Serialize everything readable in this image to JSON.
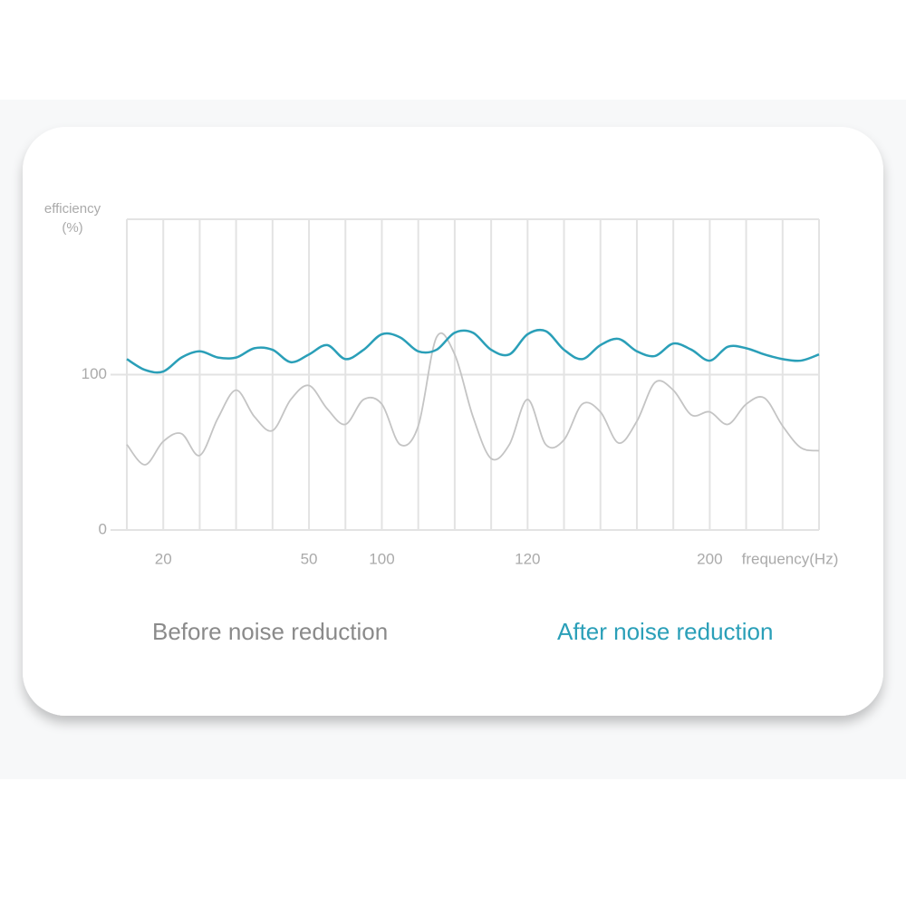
{
  "chart_data": {
    "type": "line",
    "y_label": [
      "efficiency",
      "(%)"
    ],
    "x_label": "frequency(Hz)",
    "categories": [
      null,
      null,
      "20",
      null,
      null,
      null,
      null,
      null,
      null,
      null,
      "50",
      null,
      null,
      null,
      "100",
      null,
      null,
      null,
      null,
      null,
      null,
      null,
      "120",
      null,
      null,
      null,
      null,
      null,
      null,
      null,
      null,
      null,
      "200",
      null,
      null,
      null,
      null,
      null,
      null
    ],
    "ylim": [
      0,
      200
    ],
    "yticks": [
      0,
      100
    ],
    "grid": true,
    "series": [
      {
        "name": "Before noise reduction",
        "color": "#c4c4c4",
        "values": [
          55,
          42,
          57,
          62,
          48,
          72,
          90,
          73,
          64,
          84,
          93,
          78,
          68,
          84,
          81,
          55,
          67,
          124,
          113,
          73,
          46,
          55,
          84,
          55,
          58,
          81,
          76,
          56,
          70,
          95,
          90,
          74,
          76,
          68,
          81,
          85,
          67,
          53,
          51
        ]
      },
      {
        "name": "After noise reduction",
        "color": "#2a9fb8",
        "values": [
          110,
          103,
          102,
          111,
          115,
          111,
          111,
          117,
          116,
          108,
          113,
          119,
          110,
          116,
          126,
          124,
          115,
          116,
          127,
          127,
          116,
          113,
          126,
          128,
          116,
          110,
          119,
          123,
          115,
          112,
          120,
          116,
          109,
          118,
          117,
          113,
          110,
          109,
          113
        ]
      }
    ]
  }
}
